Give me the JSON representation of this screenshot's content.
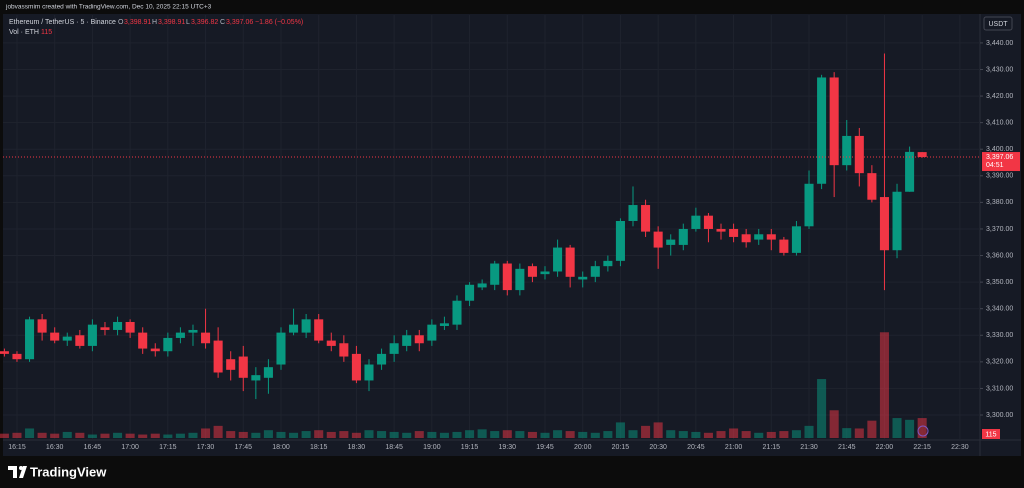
{
  "header": {
    "attribution": "jobvassmim created with TradingView.com, Dec 10, 2025 22:15 UTC+3"
  },
  "chart_data": {
    "type": "candlestick",
    "symbol": "Ethereum / TetherUS · 5 · Binance",
    "legend": {
      "o": "O",
      "open": "3,398.91",
      "h": "H",
      "high": "3,398.91",
      "l": "L",
      "low": "3,396.82",
      "c": "C",
      "close": "3,397.06",
      "change": "−1.86 (−0.05%)"
    },
    "volume_title": "Vol · ETH",
    "volume_label": "115",
    "currency": "USDT",
    "last_price_label": "3,397.06",
    "countdown": "04:51",
    "x": [
      "16:10",
      "16:15",
      "16:20",
      "16:25",
      "16:30",
      "16:35",
      "16:40",
      "16:45",
      "16:50",
      "16:55",
      "17:00",
      "17:05",
      "17:10",
      "17:15",
      "17:20",
      "17:25",
      "17:30",
      "17:35",
      "17:40",
      "17:45",
      "17:50",
      "17:55",
      "18:00",
      "18:05",
      "18:10",
      "18:15",
      "18:20",
      "18:25",
      "18:30",
      "18:35",
      "18:40",
      "18:45",
      "18:50",
      "18:55",
      "19:00",
      "19:05",
      "19:10",
      "19:15",
      "19:20",
      "19:25",
      "19:30",
      "19:35",
      "19:40",
      "19:45",
      "19:50",
      "19:55",
      "20:00",
      "20:05",
      "20:10",
      "20:15",
      "20:20",
      "20:25",
      "20:30",
      "20:35",
      "20:40",
      "20:45",
      "20:50",
      "20:55",
      "21:00",
      "21:05",
      "21:10",
      "21:15",
      "21:20",
      "21:25",
      "21:30",
      "21:35",
      "21:40",
      "21:45",
      "21:50",
      "21:55",
      "22:00",
      "22:05",
      "22:10",
      "22:15"
    ],
    "open": [
      3324,
      3323,
      3321,
      3336,
      3331,
      3328,
      3330,
      3326,
      3333,
      3332,
      3335,
      3331,
      3325,
      3324,
      3329,
      3331,
      3331,
      3328,
      3321,
      3322,
      3313,
      3314,
      3319,
      3331,
      3331,
      3336,
      3328,
      3327,
      3323,
      3313,
      3319,
      3323,
      3326,
      3330,
      3328,
      3333.5,
      3334,
      3343,
      3348,
      3349,
      3357,
      3347,
      3356,
      3353,
      3354,
      3363,
      3351,
      3352,
      3356,
      3358,
      3373,
      3379,
      3369,
      3364,
      3364,
      3370,
      3375,
      3370,
      3370,
      3368,
      3366,
      3368,
      3366,
      3361,
      3371,
      3387,
      3427,
      3394,
      3405,
      3391,
      3382,
      3362,
      3384,
      3398.91
    ],
    "high": [
      3325,
      3324,
      3337,
      3338,
      3333,
      3331,
      3332,
      3336,
      3335,
      3337,
      3336,
      3333,
      3327,
      3331,
      3333,
      3334,
      3340,
      3333,
      3324,
      3326,
      3318,
      3321,
      3333,
      3340,
      3338,
      3338,
      3331,
      3330,
      3326,
      3321,
      3325,
      3330,
      3332,
      3332,
      3336,
      3337,
      3345,
      3350,
      3351,
      3358,
      3358,
      3357,
      3357,
      3356,
      3366,
      3364,
      3354,
      3358,
      3360,
      3374,
      3386,
      3381,
      3371,
      3368,
      3372,
      3378,
      3376,
      3372,
      3372,
      3370,
      3370,
      3370,
      3367,
      3373,
      3392,
      3428,
      3429,
      3411,
      3408,
      3394,
      3436,
      3387,
      3401,
      3398.91
    ],
    "low": [
      3322,
      3320,
      3320,
      3328,
      3327,
      3326,
      3325,
      3324,
      3330,
      3330,
      3329,
      3323,
      3322,
      3322,
      3327,
      3326,
      3325,
      3314,
      3313,
      3309,
      3306,
      3308,
      3317,
      3330,
      3329,
      3327,
      3324,
      3320,
      3312,
      3309,
      3317,
      3320,
      3324,
      3324,
      3326,
      3332,
      3332,
      3341,
      3347,
      3347,
      3345,
      3345,
      3350,
      3351,
      3352,
      3348,
      3348,
      3350,
      3354,
      3356,
      3371,
      3367,
      3355,
      3360,
      3362,
      3369,
      3365,
      3366,
      3365,
      3363,
      3364,
      3362,
      3360,
      3360,
      3370,
      3385,
      3382,
      3392,
      3386,
      3380,
      3347,
      3359,
      3384,
      3396.82
    ],
    "close": [
      3323,
      3321,
      3336,
      3331,
      3328,
      3329.5,
      3326,
      3334,
      3332,
      3335,
      3331,
      3325,
      3324,
      3329,
      3331,
      3332,
      3327,
      3316,
      3317,
      3314,
      3315,
      3318,
      3331,
      3334,
      3336,
      3328,
      3326,
      3322,
      3313,
      3319,
      3323,
      3327,
      3330,
      3327,
      3334,
      3334.5,
      3343,
      3349,
      3349.5,
      3357,
      3347,
      3355,
      3352,
      3354,
      3363,
      3352,
      3352,
      3356,
      3358,
      3373,
      3379,
      3369,
      3363,
      3366,
      3370,
      3375,
      3370,
      3369,
      3367,
      3365,
      3368,
      3366,
      3361,
      3371,
      3387,
      3427,
      3394,
      3405,
      3391,
      3381,
      3362,
      3384,
      3399,
      3397.06
    ],
    "volume": [
      25,
      30,
      55,
      30,
      25,
      35,
      30,
      20,
      25,
      30,
      25,
      20,
      25,
      20,
      25,
      30,
      55,
      70,
      40,
      35,
      30,
      45,
      35,
      30,
      40,
      45,
      35,
      40,
      30,
      45,
      40,
      35,
      30,
      40,
      35,
      30,
      35,
      45,
      50,
      40,
      45,
      40,
      35,
      30,
      45,
      40,
      35,
      30,
      40,
      90,
      45,
      70,
      90,
      45,
      40,
      35,
      30,
      40,
      55,
      40,
      30,
      35,
      40,
      45,
      70,
      340,
      160,
      57,
      55,
      100,
      610,
      115,
      105,
      115
    ],
    "up_color": "#089981",
    "down_color": "#f23645",
    "xlim": [
      "16:10",
      "22:38"
    ],
    "xticks": [
      "16:15",
      "16:30",
      "16:45",
      "17:00",
      "17:15",
      "17:30",
      "17:45",
      "18:00",
      "18:15",
      "18:30",
      "18:45",
      "19:00",
      "19:15",
      "19:30",
      "19:45",
      "20:00",
      "20:15",
      "20:30",
      "20:45",
      "21:00",
      "21:15",
      "21:30",
      "21:45",
      "22:00",
      "22:15",
      "22:30"
    ],
    "ylim": [
      3290.6,
      3450.5
    ],
    "yticks": [
      {
        "value": 3300,
        "label": "3,300.00"
      },
      {
        "value": 3310,
        "label": "3,310.00"
      },
      {
        "value": 3320,
        "label": "3,320.00"
      },
      {
        "value": 3330,
        "label": "3,330.00"
      },
      {
        "value": 3340,
        "label": "3,340.00"
      },
      {
        "value": 3350,
        "label": "3,350.00"
      },
      {
        "value": 3360,
        "label": "3,360.00"
      },
      {
        "value": 3370,
        "label": "3,370.00"
      },
      {
        "value": 3380,
        "label": "3,380.00"
      },
      {
        "value": 3390,
        "label": "3,390.00"
      },
      {
        "value": 3400,
        "label": "3,400.00"
      },
      {
        "value": 3410,
        "label": "3,410.00"
      },
      {
        "value": 3420,
        "label": "3,420.00"
      },
      {
        "value": 3430,
        "label": "3,430.00"
      },
      {
        "value": 3440,
        "label": "3,440.00"
      }
    ],
    "volume_ylim": [
      0,
      750
    ],
    "grid": true
  },
  "footer": {
    "brand": "TradingView"
  }
}
